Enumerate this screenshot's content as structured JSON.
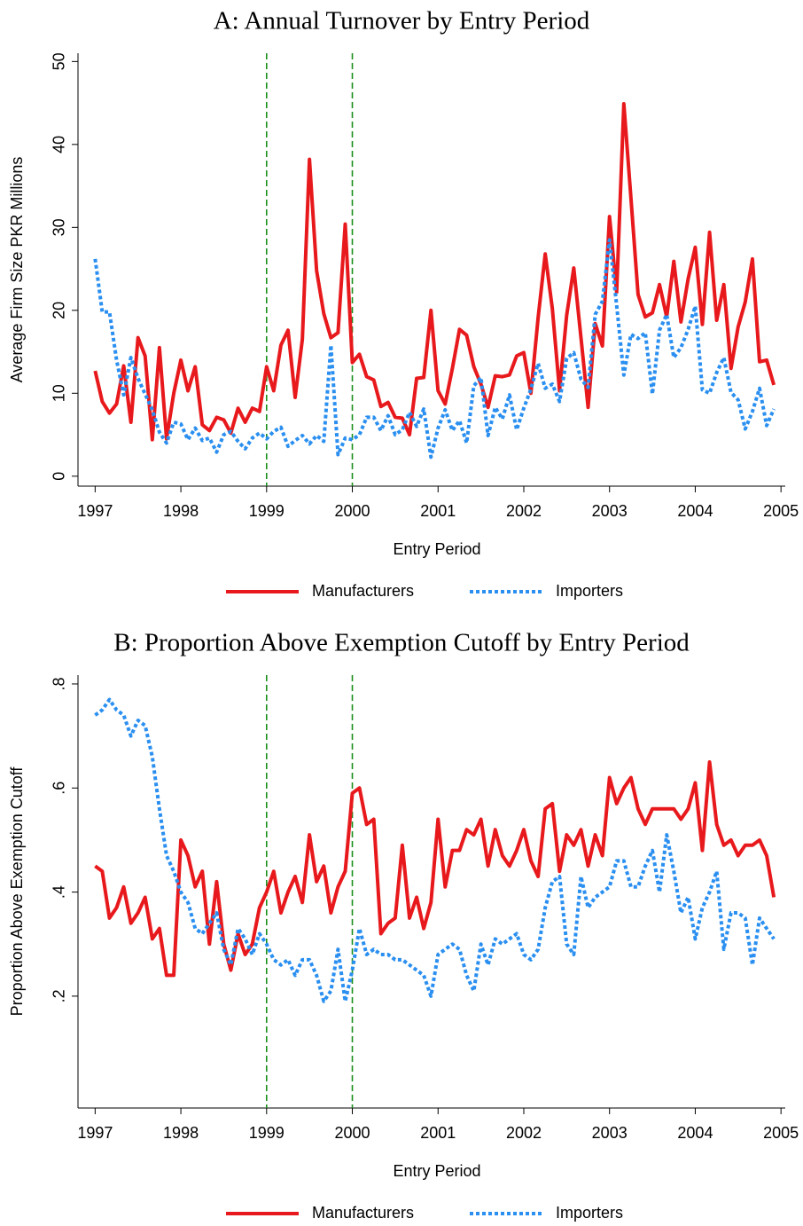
{
  "chart_data": [
    {
      "type": "line",
      "title": "A: Annual Turnover by Entry Period",
      "xlabel": "Entry Period",
      "ylabel": "Average Firm Size PKR Millions",
      "x": [
        1997,
        1997.083,
        1997.167,
        1997.25,
        1997.333,
        1997.417,
        1997.5,
        1997.583,
        1997.667,
        1997.75,
        1997.833,
        1997.917,
        1998,
        1998.083,
        1998.167,
        1998.25,
        1998.333,
        1998.417,
        1998.5,
        1998.583,
        1998.667,
        1998.75,
        1998.833,
        1998.917,
        1999,
        1999.083,
        1999.167,
        1999.25,
        1999.333,
        1999.417,
        1999.5,
        1999.583,
        1999.667,
        1999.75,
        1999.833,
        1999.917,
        2000,
        2000.083,
        2000.167,
        2000.25,
        2000.333,
        2000.417,
        2000.5,
        2000.583,
        2000.667,
        2000.75,
        2000.833,
        2000.917,
        2001,
        2001.083,
        2001.167,
        2001.25,
        2001.333,
        2001.417,
        2001.5,
        2001.583,
        2001.667,
        2001.75,
        2001.833,
        2001.917,
        2002,
        2002.083,
        2002.167,
        2002.25,
        2002.333,
        2002.417,
        2002.5,
        2002.583,
        2002.667,
        2002.75,
        2002.833,
        2002.917,
        2003,
        2003.083,
        2003.167,
        2003.25,
        2003.333,
        2003.417,
        2003.5,
        2003.583,
        2003.667,
        2003.75,
        2003.833,
        2003.917,
        2004,
        2004.083,
        2004.167,
        2004.25,
        2004.333,
        2004.417,
        2004.5,
        2004.583,
        2004.667,
        2004.75,
        2004.833,
        2004.917
      ],
      "series": [
        {
          "name": "Manufacturers",
          "color": "#e8191c",
          "dash": "solid",
          "values": [
            12.7,
            9,
            7.6,
            8.7,
            13.3,
            6.5,
            16.7,
            14.5,
            4.4,
            15.5,
            4.5,
            10,
            14,
            10.3,
            13.2,
            6.2,
            5.5,
            7.1,
            6.8,
            5.2,
            8.2,
            6.5,
            8.2,
            7.8,
            13.2,
            10.3,
            15.8,
            17.6,
            9.5,
            16.5,
            38.2,
            24.8,
            19.6,
            16.7,
            17.3,
            30.4,
            13.7,
            14.7,
            12,
            11.6,
            8.4,
            8.9,
            7.1,
            7,
            5,
            11.8,
            11.9,
            20,
            10.3,
            8.7,
            13,
            17.7,
            17,
            13.2,
            11.1,
            8.3,
            12.1,
            12,
            12.2,
            14.5,
            14.9,
            10,
            19.1,
            26.8,
            20.2,
            10.3,
            19.4,
            25.1,
            16.7,
            8.3,
            18.4,
            15.7,
            31.3,
            22.2,
            44.9,
            33.5,
            21.9,
            19.2,
            19.7,
            23.1,
            19.2,
            25.9,
            18.6,
            23.8,
            27.6,
            18.3,
            29.4,
            18.8,
            23.1,
            13,
            18,
            21,
            26.2,
            13.8,
            14,
            11
          ]
        },
        {
          "name": "Importers",
          "color": "#2a8ff0",
          "dash": "dotted",
          "values": [
            26.2,
            19.8,
            19.8,
            14,
            9.8,
            14.3,
            11.8,
            9.9,
            8,
            5.3,
            4,
            6.5,
            6.3,
            4.4,
            5.8,
            4.3,
            4.6,
            2.9,
            5,
            5.4,
            4.2,
            3.3,
            4.6,
            5.2,
            4.5,
            5.4,
            5.9,
            3.6,
            4.3,
            4.9,
            3.9,
            4.9,
            4.2,
            15.8,
            2.6,
            4.6,
            4.4,
            5,
            7.1,
            7.1,
            5.5,
            7.3,
            5,
            5.6,
            7.7,
            6,
            8.1,
            2.3,
            5.8,
            8,
            5.5,
            6.7,
            4,
            10.9,
            11.9,
            4.9,
            8.3,
            6.9,
            9.8,
            5.6,
            8.2,
            10.5,
            13.6,
            10.6,
            11.1,
            9,
            14.2,
            14.9,
            11.7,
            10.7,
            19.5,
            21.1,
            28.5,
            20.6,
            12.2,
            17.1,
            16.6,
            17.3,
            9.9,
            17.6,
            19.5,
            14.3,
            15.5,
            17.7,
            20.5,
            10.4,
            10,
            12.5,
            14.3,
            10.1,
            9.2,
            5.7,
            7.8,
            10.6,
            6.1,
            8.1
          ]
        }
      ],
      "reference_lines": [
        1999,
        2000
      ],
      "reference_color": "#1a8f1a",
      "xlim": [
        1996.8,
        2005.05
      ],
      "xticks": [
        1997,
        1998,
        1999,
        2000,
        2001,
        2002,
        2003,
        2004,
        2005
      ],
      "ylim": [
        -1.2,
        51
      ],
      "yticks": [
        0,
        10,
        20,
        30,
        40,
        50
      ],
      "grid": false
    },
    {
      "type": "line",
      "title": "B: Proportion Above Exemption Cutoff by Entry Period",
      "xlabel": "Entry Period",
      "ylabel": "Proportion Above Exemption Cutoff",
      "x": [
        1997,
        1997.083,
        1997.167,
        1997.25,
        1997.333,
        1997.417,
        1997.5,
        1997.583,
        1997.667,
        1997.75,
        1997.833,
        1997.917,
        1998,
        1998.083,
        1998.167,
        1998.25,
        1998.333,
        1998.417,
        1998.5,
        1998.583,
        1998.667,
        1998.75,
        1998.833,
        1998.917,
        1999,
        1999.083,
        1999.167,
        1999.25,
        1999.333,
        1999.417,
        1999.5,
        1999.583,
        1999.667,
        1999.75,
        1999.833,
        1999.917,
        2000,
        2000.083,
        2000.167,
        2000.25,
        2000.333,
        2000.417,
        2000.5,
        2000.583,
        2000.667,
        2000.75,
        2000.833,
        2000.917,
        2001,
        2001.083,
        2001.167,
        2001.25,
        2001.333,
        2001.417,
        2001.5,
        2001.583,
        2001.667,
        2001.75,
        2001.833,
        2001.917,
        2002,
        2002.083,
        2002.167,
        2002.25,
        2002.333,
        2002.417,
        2002.5,
        2002.583,
        2002.667,
        2002.75,
        2002.833,
        2002.917,
        2003,
        2003.083,
        2003.167,
        2003.25,
        2003.333,
        2003.417,
        2003.5,
        2003.583,
        2003.667,
        2003.75,
        2003.833,
        2003.917,
        2004,
        2004.083,
        2004.167,
        2004.25,
        2004.333,
        2004.417,
        2004.5,
        2004.583,
        2004.667,
        2004.75,
        2004.833,
        2004.917
      ],
      "series": [
        {
          "name": "Manufacturers",
          "color": "#e8191c",
          "dash": "solid",
          "values": [
            0.45,
            0.44,
            0.35,
            0.37,
            0.41,
            0.34,
            0.36,
            0.39,
            0.31,
            0.33,
            0.24,
            0.24,
            0.5,
            0.47,
            0.41,
            0.44,
            0.3,
            0.42,
            0.3,
            0.25,
            0.32,
            0.28,
            0.3,
            0.37,
            0.4,
            0.44,
            0.36,
            0.4,
            0.43,
            0.38,
            0.51,
            0.42,
            0.45,
            0.36,
            0.41,
            0.44,
            0.59,
            0.6,
            0.53,
            0.54,
            0.32,
            0.34,
            0.35,
            0.49,
            0.35,
            0.39,
            0.33,
            0.38,
            0.54,
            0.41,
            0.48,
            0.48,
            0.52,
            0.51,
            0.54,
            0.45,
            0.52,
            0.47,
            0.45,
            0.48,
            0.52,
            0.46,
            0.43,
            0.56,
            0.57,
            0.44,
            0.51,
            0.49,
            0.52,
            0.45,
            0.51,
            0.47,
            0.62,
            0.57,
            0.6,
            0.62,
            0.56,
            0.53,
            0.56,
            0.56,
            0.56,
            0.56,
            0.54,
            0.56,
            0.61,
            0.48,
            0.65,
            0.53,
            0.49,
            0.5,
            0.47,
            0.49,
            0.49,
            0.5,
            0.47,
            0.39
          ]
        },
        {
          "name": "Importers",
          "color": "#2a8ff0",
          "dash": "dotted",
          "values": [
            0.74,
            0.75,
            0.77,
            0.75,
            0.74,
            0.7,
            0.73,
            0.72,
            0.66,
            0.56,
            0.47,
            0.44,
            0.4,
            0.38,
            0.33,
            0.32,
            0.34,
            0.36,
            0.29,
            0.26,
            0.33,
            0.31,
            0.28,
            0.32,
            0.3,
            0.27,
            0.26,
            0.27,
            0.24,
            0.27,
            0.27,
            0.24,
            0.19,
            0.21,
            0.29,
            0.19,
            0.25,
            0.33,
            0.28,
            0.29,
            0.28,
            0.28,
            0.27,
            0.27,
            0.26,
            0.25,
            0.24,
            0.2,
            0.28,
            0.29,
            0.3,
            0.29,
            0.24,
            0.21,
            0.3,
            0.26,
            0.31,
            0.3,
            0.31,
            0.32,
            0.28,
            0.27,
            0.29,
            0.37,
            0.42,
            0.43,
            0.3,
            0.28,
            0.43,
            0.37,
            0.39,
            0.4,
            0.41,
            0.46,
            0.46,
            0.41,
            0.41,
            0.45,
            0.48,
            0.4,
            0.51,
            0.44,
            0.36,
            0.39,
            0.31,
            0.37,
            0.4,
            0.44,
            0.29,
            0.36,
            0.36,
            0.35,
            0.26,
            0.35,
            0.33,
            0.31
          ]
        }
      ],
      "reference_lines": [
        1999,
        2000
      ],
      "reference_color": "#1a8f1a",
      "xlim": [
        1996.8,
        2005.05
      ],
      "xticks": [
        1997,
        1998,
        1999,
        2000,
        2001,
        2002,
        2003,
        2004,
        2005
      ],
      "ylim": [
        -0.015,
        0.817
      ],
      "yticks": [
        {
          "value": 0.2,
          "label": ".2"
        },
        {
          "value": 0.4,
          "label": ".4"
        },
        {
          "value": 0.6,
          "label": ".6"
        },
        {
          "value": 0.8,
          "label": ".8"
        }
      ],
      "grid": false
    }
  ]
}
